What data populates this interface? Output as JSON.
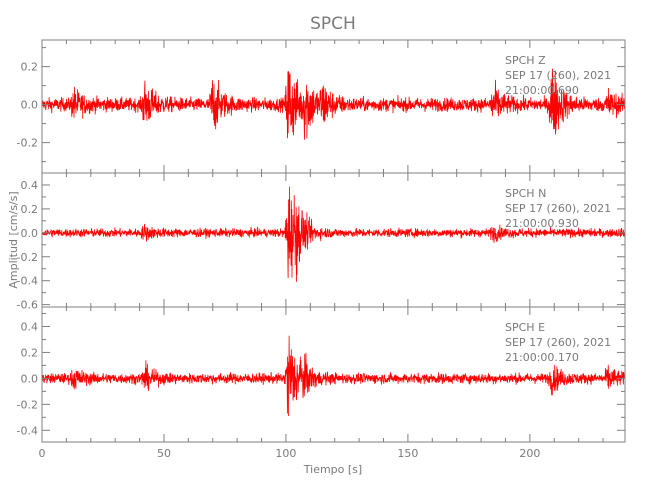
{
  "chart_data": {
    "type": "line",
    "title": "SPCH",
    "xlabel": "Tiempo [s]",
    "ylabel": "Amplitud [cm/s/s]",
    "xlim": [
      0,
      239
    ],
    "x_ticks": [
      "0",
      "50",
      "100",
      "150",
      "200"
    ],
    "x_tick_values": [
      0,
      50,
      100,
      150,
      200
    ],
    "grid": false,
    "line_color": "#ff0000",
    "axis_color": "#808080",
    "panels": [
      {
        "component": "Z",
        "label_station": "SPCH   Z",
        "label_date": "SEP 17 (260), 2021",
        "label_time": "21:00:00.690",
        "ylim": [
          -0.36,
          0.34
        ],
        "y_ticks": [
          "0.2",
          "0.0",
          "-0.2"
        ],
        "y_tick_values": [
          0.2,
          0.0,
          -0.2
        ],
        "noise_amplitude": 0.045,
        "bursts": [
          [
            13,
            0.09
          ],
          [
            42,
            0.15
          ],
          [
            70,
            0.18
          ],
          [
            101,
            0.33
          ],
          [
            108,
            0.2
          ],
          [
            115,
            0.12
          ],
          [
            185,
            0.12
          ],
          [
            209,
            0.28
          ],
          [
            232,
            0.08
          ]
        ]
      },
      {
        "component": "N",
        "label_station": "SPCH   N",
        "label_date": "SEP 17 (260), 2021",
        "label_time": "21:00:00.930",
        "ylim": [
          -0.62,
          0.5
        ],
        "y_ticks": [
          "0.4",
          "0.2",
          "0.0",
          "-0.2",
          "-0.4",
          "-0.6"
        ],
        "y_tick_values": [
          0.4,
          0.2,
          0.0,
          -0.2,
          -0.4,
          -0.6
        ],
        "noise_amplitude": 0.045,
        "bursts": [
          [
            42,
            0.06
          ],
          [
            101,
            0.6
          ],
          [
            104,
            0.2
          ],
          [
            185,
            0.06
          ]
        ]
      },
      {
        "component": "E",
        "label_station": "SPCH   E",
        "label_date": "SEP 17 (260), 2021",
        "label_time": "21:00:00.170",
        "ylim": [
          -0.49,
          0.55
        ],
        "y_ticks": [
          "0.4",
          "0.2",
          "0.0",
          "-0.2",
          "-0.4"
        ],
        "y_tick_values": [
          0.4,
          0.2,
          0.0,
          -0.2,
          -0.4
        ],
        "noise_amplitude": 0.05,
        "bursts": [
          [
            13,
            0.08
          ],
          [
            42,
            0.1
          ],
          [
            101,
            0.48
          ],
          [
            106,
            0.15
          ],
          [
            209,
            0.12
          ],
          [
            232,
            0.1
          ]
        ]
      }
    ]
  }
}
